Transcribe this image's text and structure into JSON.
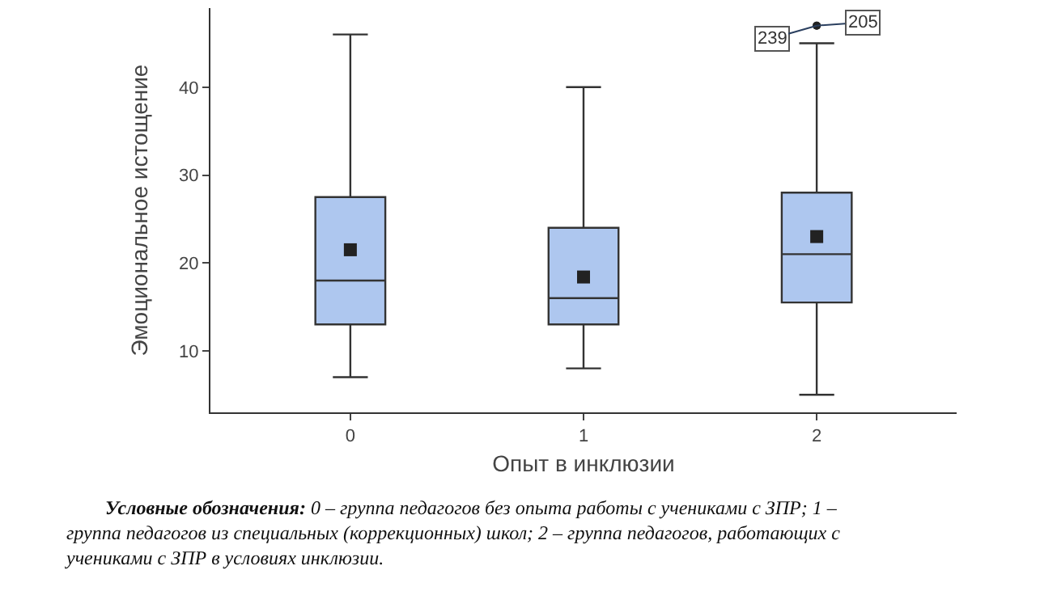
{
  "chart_data": {
    "type": "box",
    "xlabel": "Опыт в инклюзии",
    "ylabel": "Эмоциональное истощение",
    "categories": [
      "0",
      "1",
      "2"
    ],
    "color": "#aec7ef",
    "ylim": [
      3,
      49
    ],
    "yticks": [
      10,
      20,
      30,
      40
    ],
    "boxes": [
      {
        "low": 7,
        "q1": 13,
        "median": 18,
        "q3": 27.5,
        "high": 46,
        "mean": 21.5
      },
      {
        "low": 8,
        "q1": 13,
        "median": 16,
        "q3": 24,
        "high": 40,
        "mean": 18.4
      },
      {
        "low": 5,
        "q1": 15.5,
        "median": 21,
        "q3": 28,
        "high": 45,
        "mean": 23,
        "outliers": [
          47,
          47
        ]
      }
    ],
    "annotations": [
      "239",
      "205",
      "Условные обозначения: 0 – группа педагогов без опыта работы с учениками с ЗПР; 1 – группа педагогов из специальных (коррекционных) школ; 2 – группа педагогов, работающих с учениками с ЗПР в условиях инклюзии."
    ]
  }
}
